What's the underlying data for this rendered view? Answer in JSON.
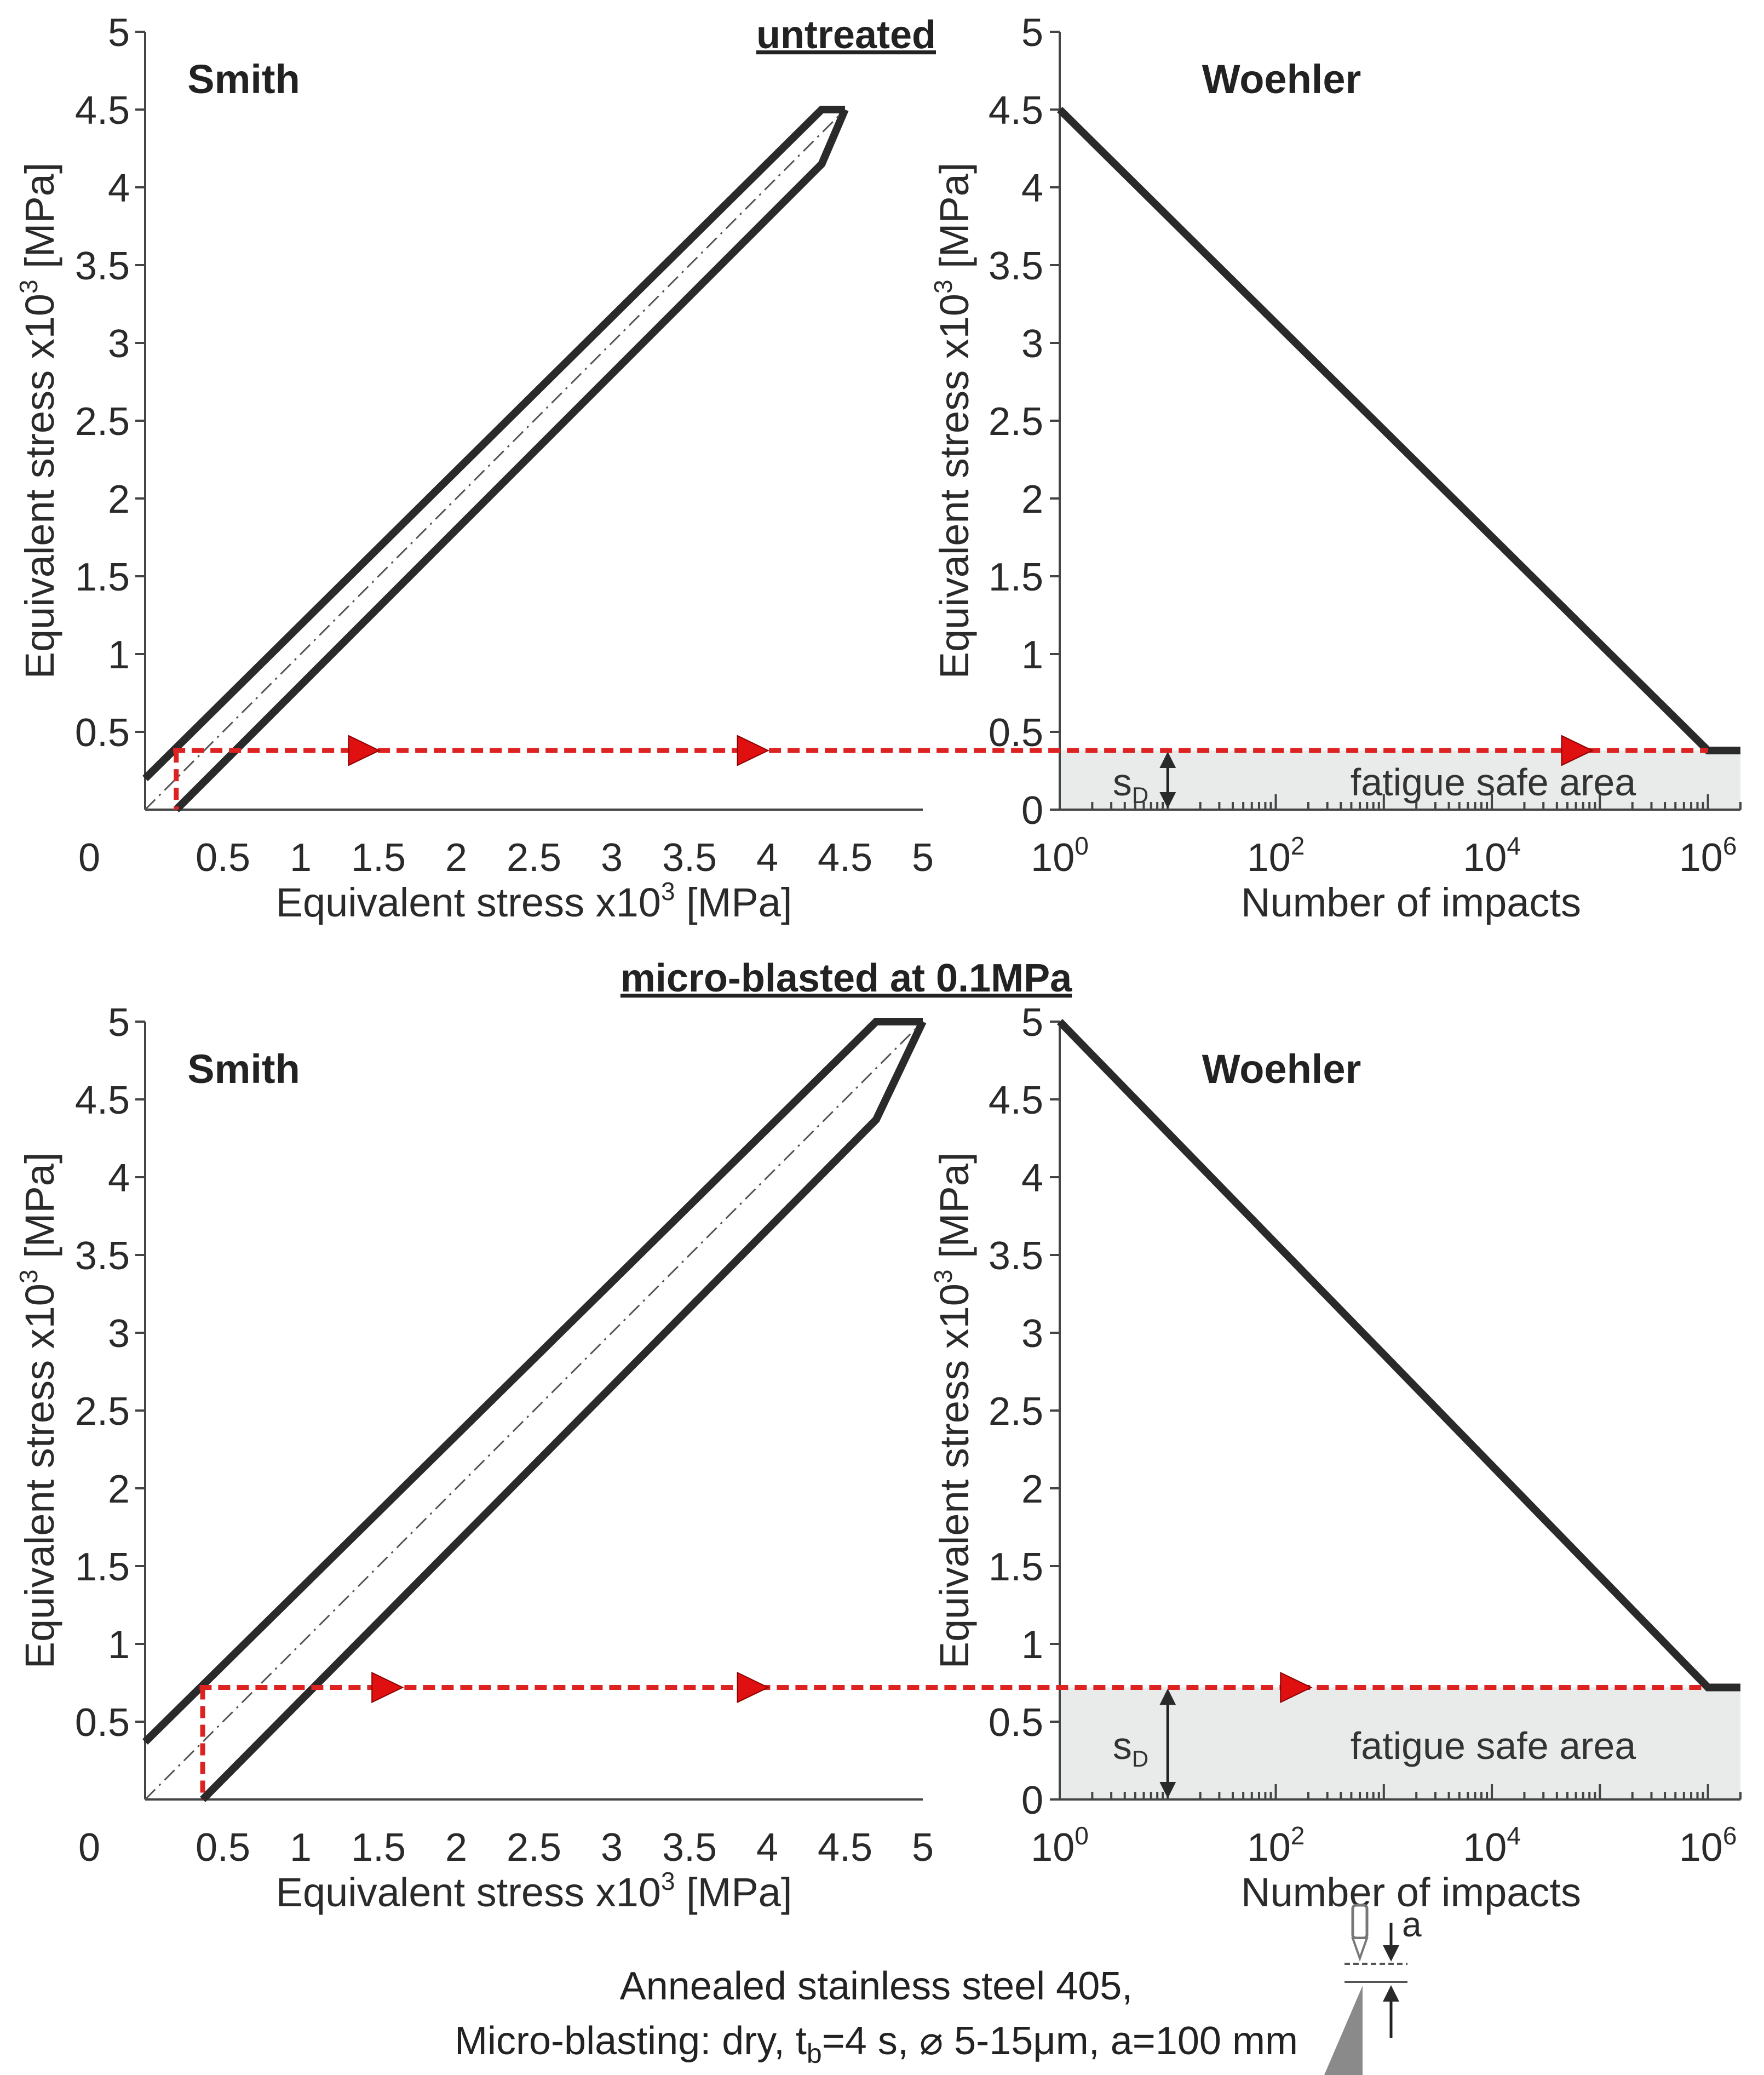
{
  "colors": {
    "line": "#2a2a2a",
    "marker": "#e01010",
    "dashed": "#dd2222",
    "safe_fill": "#e9eaea",
    "nozzle": "#777777"
  },
  "sections": {
    "top": "untreated",
    "bottom": "micro-blasted at 0.1MPa"
  },
  "caption": {
    "line1": "Annealed stainless steel  405,",
    "line2_pre": "Micro-blasting: dry, t",
    "line2_sub": "b",
    "line2_post": "=4 s, ⌀ 5-15μm, a=100 mm",
    "nozzle_label": "a"
  },
  "chart_data": [
    {
      "type": "line",
      "panel": "top-left",
      "title": "Smith",
      "xlabel": "Equivalent stress x10³ [MPa]",
      "ylabel": "Equivalent stress x10³ [MPa]",
      "xlim": [
        0,
        5
      ],
      "ylim": [
        0,
        5
      ],
      "xticks": [
        "0.5",
        "1",
        "1.5",
        "2",
        "2.5",
        "3",
        "3.5",
        "4",
        "4.5",
        "5"
      ],
      "yticks": [
        "0.5",
        "1",
        "1.5",
        "2",
        "2.5",
        "3",
        "3.5",
        "4",
        "4.5",
        "5"
      ],
      "origin_label": "0",
      "series": [
        {
          "role": "upper",
          "x": [
            0,
            4.35,
            4.5
          ],
          "y": [
            0.2,
            4.5,
            4.5
          ]
        },
        {
          "role": "lower",
          "x": [
            0.2,
            4.35,
            4.5
          ],
          "y": [
            0,
            4.15,
            4.5
          ]
        },
        {
          "role": "diagonal",
          "x": [
            0,
            4.5
          ],
          "y": [
            0,
            4.5
          ]
        }
      ],
      "endurance_limit": 0.38
    },
    {
      "type": "line",
      "panel": "top-right",
      "title": "Woehler",
      "xlabel": "Number of impacts",
      "ylabel": "Equivalent stress x10³ [MPa]",
      "xscale": "log",
      "xlim": [
        1,
        2000000
      ],
      "ylim": [
        0,
        5
      ],
      "xticks": [
        {
          "base": "10",
          "exp": "0"
        },
        {
          "base": "10",
          "exp": "2"
        },
        {
          "base": "10",
          "exp": "4"
        },
        {
          "base": "10",
          "exp": "6"
        }
      ],
      "yticks": [
        "0",
        "0.5",
        "1",
        "1.5",
        "2",
        "2.5",
        "3",
        "3.5",
        "4",
        "4.5",
        "5"
      ],
      "series": [
        {
          "x": [
            1,
            1000000,
            2000000
          ],
          "y": [
            4.5,
            0.38,
            0.38
          ]
        }
      ],
      "endurance_limit": 0.38,
      "safe_area_label": "fatigue safe area",
      "sd_label": {
        "main": "s",
        "sub": "D"
      },
      "top_label": "untreated"
    },
    {
      "type": "line",
      "panel": "bottom-left",
      "title": "Smith",
      "xlabel": "Equivalent stress x10³ [MPa]",
      "ylabel": "Equivalent stress x10³ [MPa]",
      "xlim": [
        0,
        5
      ],
      "ylim": [
        0,
        5
      ],
      "xticks": [
        "0.5",
        "1",
        "1.5",
        "2",
        "2.5",
        "3",
        "3.5",
        "4",
        "4.5",
        "5"
      ],
      "yticks": [
        "0.5",
        "1",
        "1.5",
        "2",
        "2.5",
        "3",
        "3.5",
        "4",
        "4.5",
        "5"
      ],
      "origin_label": "0",
      "series": [
        {
          "role": "upper",
          "x": [
            0,
            4.7,
            5.0
          ],
          "y": [
            0.37,
            5.0,
            5.0
          ]
        },
        {
          "role": "lower",
          "x": [
            0.37,
            4.7,
            5.0
          ],
          "y": [
            0,
            4.37,
            5.0
          ]
        },
        {
          "role": "diagonal",
          "x": [
            0,
            5.0
          ],
          "y": [
            0,
            5.0
          ]
        }
      ],
      "endurance_limit": 0.72
    },
    {
      "type": "line",
      "panel": "bottom-right",
      "title": "Woehler",
      "xlabel": "Number of impacts",
      "ylabel": "Equivalent stress x10³ [MPa]",
      "xscale": "log",
      "xlim": [
        1,
        2000000
      ],
      "ylim": [
        0,
        5
      ],
      "xticks": [
        {
          "base": "10",
          "exp": "0"
        },
        {
          "base": "10",
          "exp": "2"
        },
        {
          "base": "10",
          "exp": "4"
        },
        {
          "base": "10",
          "exp": "6"
        }
      ],
      "yticks": [
        "0",
        "0.5",
        "1",
        "1.5",
        "2",
        "2.5",
        "3",
        "3.5",
        "4",
        "4.5",
        "5"
      ],
      "series": [
        {
          "x": [
            1,
            1000000,
            2000000
          ],
          "y": [
            5.0,
            0.72,
            0.72
          ]
        }
      ],
      "endurance_limit": 0.72,
      "safe_area_label": "fatigue safe area",
      "sd_label": {
        "main": "s",
        "sub": "D"
      }
    }
  ]
}
